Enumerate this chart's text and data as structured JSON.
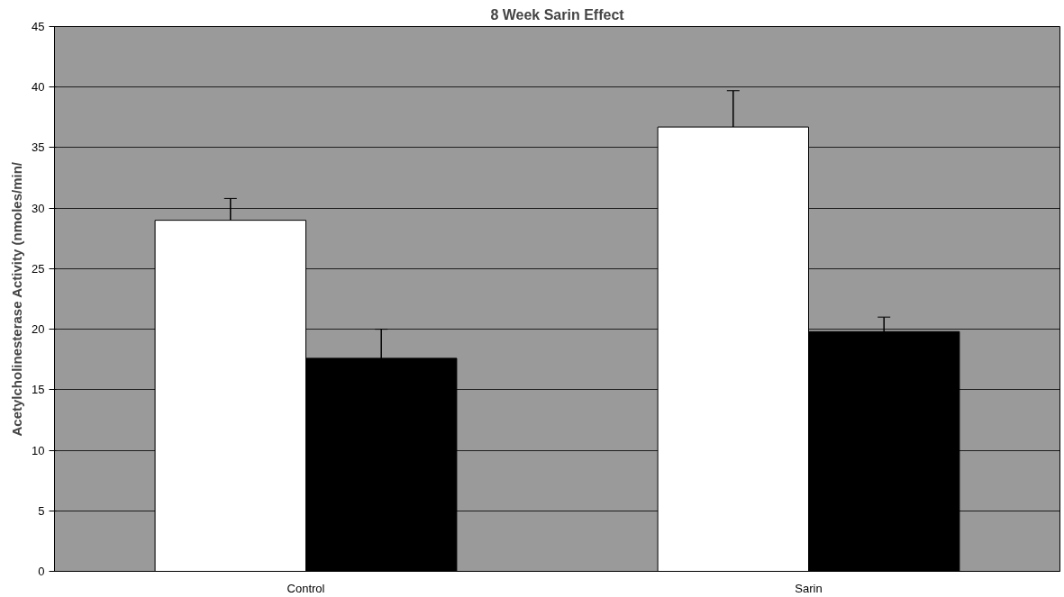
{
  "chart_data": {
    "type": "bar",
    "title": "8 Week Sarin Effect",
    "ylabel": "Acetylcholinesterase Activity (nmoles/min/",
    "categories": [
      "Control",
      "Sarin"
    ],
    "series": [
      {
        "color": "#ffffff",
        "values": [
          29.0,
          36.7
        ],
        "errors": [
          1.8,
          3.0
        ]
      },
      {
        "color": "#000000",
        "values": [
          17.6,
          19.8
        ],
        "errors": [
          2.4,
          1.2
        ]
      }
    ],
    "ylim": [
      0,
      45
    ],
    "yticks": [
      0,
      5,
      10,
      15,
      20,
      25,
      30,
      35,
      40,
      45
    ],
    "grid": "y"
  }
}
